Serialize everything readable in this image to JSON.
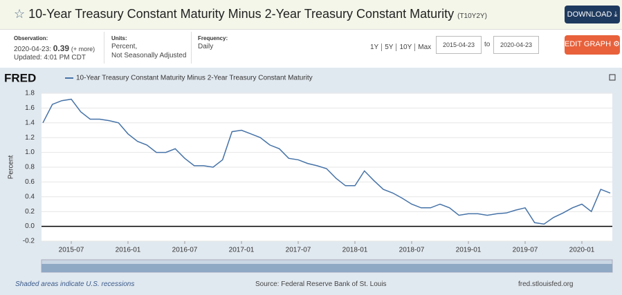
{
  "header": {
    "title": "10-Year Treasury Constant Maturity Minus 2-Year Treasury Constant Maturity",
    "series_id": "(T10Y2Y)",
    "download": "DOWNLOAD"
  },
  "info": {
    "observation_label": "Observation:",
    "observation_date": "2020-04-23:",
    "observation_value": "0.39",
    "more": "(+ more)",
    "updated": "Updated: 4:01 PM CDT",
    "units_label": "Units:",
    "units": [
      "Percent,",
      "Not Seasonally Adjusted"
    ],
    "frequency_label": "Frequency:",
    "frequency": "Daily",
    "ranges": [
      "1Y",
      "5Y",
      "10Y",
      "Max"
    ],
    "start_date": "2015-04-23",
    "to": "to",
    "end_date": "2020-04-23",
    "edit": "EDIT GRAPH"
  },
  "chart_data": {
    "type": "line",
    "logo": "FRED",
    "y_label": "Percent",
    "x": [
      "2015-04",
      "2015-05",
      "2015-06",
      "2015-07",
      "2015-08",
      "2015-09",
      "2015-10",
      "2015-11",
      "2015-12",
      "2016-01",
      "2016-02",
      "2016-03",
      "2016-04",
      "2016-05",
      "2016-06",
      "2016-07",
      "2016-08",
      "2016-09",
      "2016-10",
      "2016-11",
      "2016-12",
      "2017-01",
      "2017-02",
      "2017-03",
      "2017-04",
      "2017-05",
      "2017-06",
      "2017-07",
      "2017-08",
      "2017-09",
      "2017-10",
      "2017-11",
      "2017-12",
      "2018-01",
      "2018-02",
      "2018-03",
      "2018-04",
      "2018-05",
      "2018-06",
      "2018-07",
      "2018-08",
      "2018-09",
      "2018-10",
      "2018-11",
      "2018-12",
      "2019-01",
      "2019-02",
      "2019-03",
      "2019-04",
      "2019-05",
      "2019-06",
      "2019-07",
      "2019-08",
      "2019-09",
      "2019-10",
      "2019-11",
      "2019-12",
      "2020-01",
      "2020-02",
      "2020-03",
      "2020-04"
    ],
    "series": [
      {
        "name": "10-Year Treasury Constant Maturity Minus 2-Year Treasury Constant Maturity",
        "color": "#4572a7",
        "values": [
          1.4,
          1.65,
          1.7,
          1.72,
          1.55,
          1.45,
          1.45,
          1.43,
          1.4,
          1.25,
          1.15,
          1.1,
          1.0,
          1.0,
          1.05,
          0.92,
          0.82,
          0.82,
          0.8,
          0.9,
          1.28,
          1.3,
          1.25,
          1.2,
          1.1,
          1.05,
          0.92,
          0.9,
          0.85,
          0.82,
          0.78,
          0.65,
          0.55,
          0.55,
          0.75,
          0.62,
          0.5,
          0.45,
          0.38,
          0.3,
          0.25,
          0.25,
          0.3,
          0.25,
          0.15,
          0.17,
          0.17,
          0.15,
          0.17,
          0.18,
          0.22,
          0.25,
          0.05,
          0.03,
          0.12,
          0.18,
          0.25,
          0.3,
          0.2,
          0.5,
          0.45
        ]
      }
    ],
    "xticks": [
      "2015-07",
      "2016-01",
      "2016-07",
      "2017-01",
      "2017-07",
      "2018-01",
      "2018-07",
      "2019-01",
      "2019-07",
      "2020-01"
    ],
    "ylim": [
      -0.2,
      1.8
    ],
    "yticks": [
      -0.2,
      {
        "value": 0,
        "label": "0.0"
      },
      0.2,
      0.4,
      0.6,
      0.8,
      {
        "value": 1,
        "label": "1.0"
      },
      1.2,
      1.4,
      1.6,
      1.8
    ],
    "grid": true,
    "zero_line": true
  },
  "footer": {
    "recession_note": "Shaded areas indicate U.S. recessions",
    "source": "Source: Federal Reserve Bank of St. Louis",
    "site": "fred.stlouisfed.org"
  }
}
